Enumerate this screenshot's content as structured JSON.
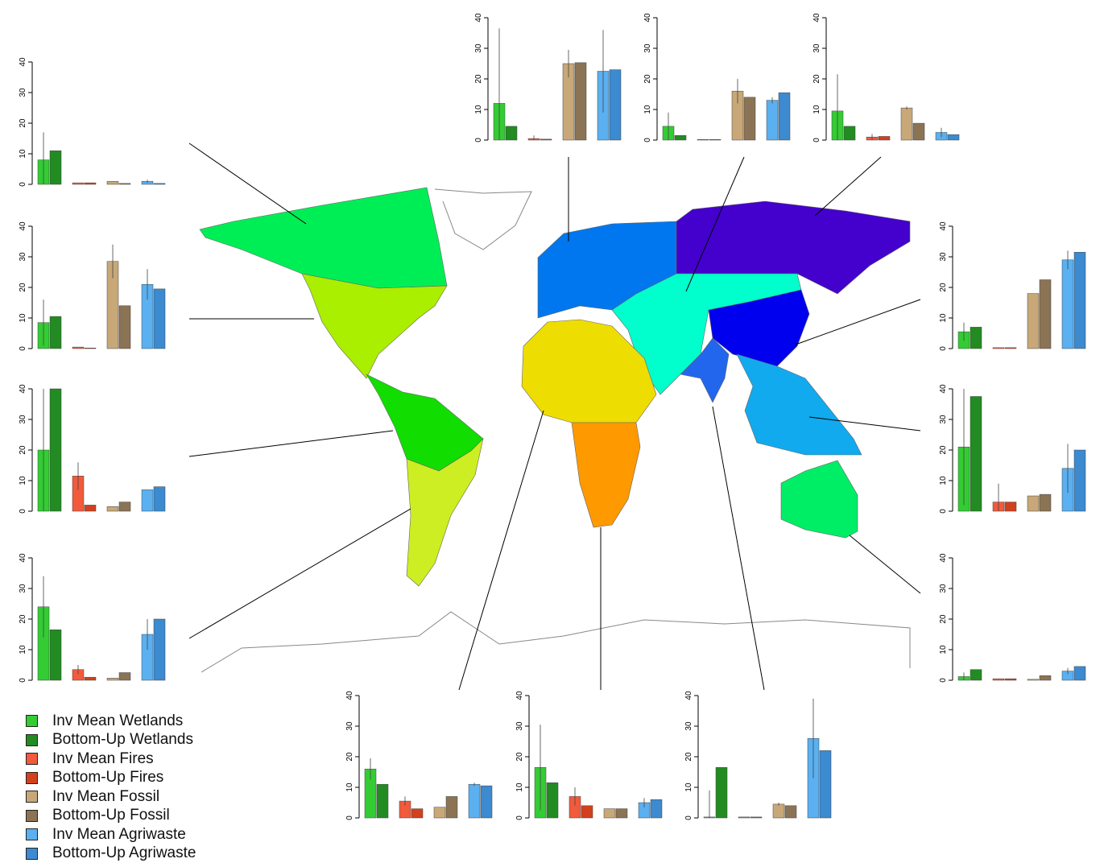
{
  "chart_data": {
    "type": "bar",
    "categories": [
      "Wetlands",
      "Fires",
      "Fossil",
      "Agriwaste"
    ],
    "yticks": [
      "0",
      "10",
      "20",
      "30",
      "40"
    ],
    "ylim": [
      0,
      40
    ],
    "legend_position": "bottom-left",
    "series_names": [
      "Inv Mean Wetlands",
      "Bottom-Up Wetlands",
      "Inv Mean Fires",
      "Bottom-Up Fires",
      "Inv Mean Fossil",
      "Bottom-Up Fossil",
      "Inv Mean Agriwaste",
      "Bottom-Up Agriwaste"
    ],
    "colors": [
      "#33cc33",
      "#228b22",
      "#f25a3c",
      "#d2401e",
      "#c8a878",
      "#8b7355",
      "#5ab0f0",
      "#3c8ad0"
    ],
    "panels": [
      {
        "region": "boreal-north-america",
        "inv": [
          8,
          0.5,
          1,
          1
        ],
        "bottom_up": [
          11,
          0.5,
          0.3,
          0.3
        ],
        "inv_err_high": [
          17,
          0,
          0,
          1.5
        ]
      },
      {
        "region": "temperate-north-america",
        "inv": [
          8.5,
          0.5,
          28.5,
          21
        ],
        "bottom_up": [
          10.5,
          0.2,
          14,
          19.5
        ],
        "inv_err_high": [
          16,
          0,
          34,
          26
        ]
      },
      {
        "region": "tropical-south-america",
        "inv": [
          20,
          11.5,
          1.5,
          7
        ],
        "bottom_up": [
          40,
          2,
          3,
          8
        ],
        "inv_err_high": [
          40,
          16,
          0,
          0
        ]
      },
      {
        "region": "temperate-south-america",
        "inv": [
          24,
          3.5,
          0.7,
          15
        ],
        "bottom_up": [
          16.5,
          1,
          2.5,
          20
        ],
        "inv_err_high": [
          34,
          5,
          0,
          20
        ]
      },
      {
        "region": "europe",
        "inv": [
          12,
          0.5,
          25,
          22.5
        ],
        "bottom_up": [
          4.5,
          0.3,
          25.3,
          23
        ],
        "inv_err_high": [
          36.5,
          1.5,
          29.5,
          36
        ]
      },
      {
        "region": "central-asia",
        "inv": [
          4.5,
          0.2,
          16,
          13
        ],
        "bottom_up": [
          1.5,
          0.2,
          14,
          15.5
        ],
        "inv_err_high": [
          9,
          0,
          20,
          14
        ]
      },
      {
        "region": "boreal-eurasia",
        "inv": [
          9.5,
          1,
          10.5,
          2.5
        ],
        "bottom_up": [
          4.5,
          1.2,
          5.5,
          1.8
        ],
        "inv_err_high": [
          21.5,
          2,
          11,
          4
        ]
      },
      {
        "region": "temperate-east-asia",
        "inv": [
          5.5,
          0.3,
          18,
          29
        ],
        "bottom_up": [
          7,
          0.3,
          22.5,
          31.5
        ],
        "inv_err_high": [
          8.5,
          0,
          18,
          32
        ]
      },
      {
        "region": "tropical-asia",
        "inv": [
          21,
          3,
          5,
          14
        ],
        "bottom_up": [
          37.5,
          3,
          5.5,
          20
        ],
        "inv_err_high": [
          40,
          9,
          5,
          22
        ]
      },
      {
        "region": "australia",
        "inv": [
          1.2,
          0.5,
          0.3,
          3
        ],
        "bottom_up": [
          3.5,
          0.5,
          1.5,
          4.5
        ],
        "inv_err_high": [
          2.5,
          0,
          0,
          4
        ]
      },
      {
        "region": "north-africa",
        "inv": [
          16,
          5.5,
          3.5,
          11
        ],
        "bottom_up": [
          11,
          3,
          7,
          10.5
        ],
        "inv_err_high": [
          19.5,
          7,
          0,
          11.5
        ]
      },
      {
        "region": "southern-africa",
        "inv": [
          16.5,
          7,
          3,
          5
        ],
        "bottom_up": [
          11.5,
          4,
          3,
          6
        ],
        "inv_err_high": [
          30.5,
          10,
          3,
          6.5
        ]
      },
      {
        "region": "south-asia",
        "inv": [
          0.3,
          0.3,
          4.5,
          26
        ],
        "bottom_up": [
          16.5,
          0.3,
          4,
          22
        ],
        "inv_err_high": [
          9,
          0,
          5,
          39
        ]
      }
    ]
  },
  "map_colors": {
    "boreal_na": "#00ee55",
    "temperate_na": "#aaee00",
    "tropical_sa": "#11dd00",
    "temperate_sa": "#ccee22",
    "europe": "#0077ee",
    "boreal_asia": "#4400cc",
    "central_asia": "#00ffcc",
    "east_asia": "#0000ee",
    "south_asia": "#2266ee",
    "se_asia": "#11aaee",
    "north_africa": "#eedd00",
    "south_africa": "#ff9900",
    "australia": "#00ee66"
  }
}
